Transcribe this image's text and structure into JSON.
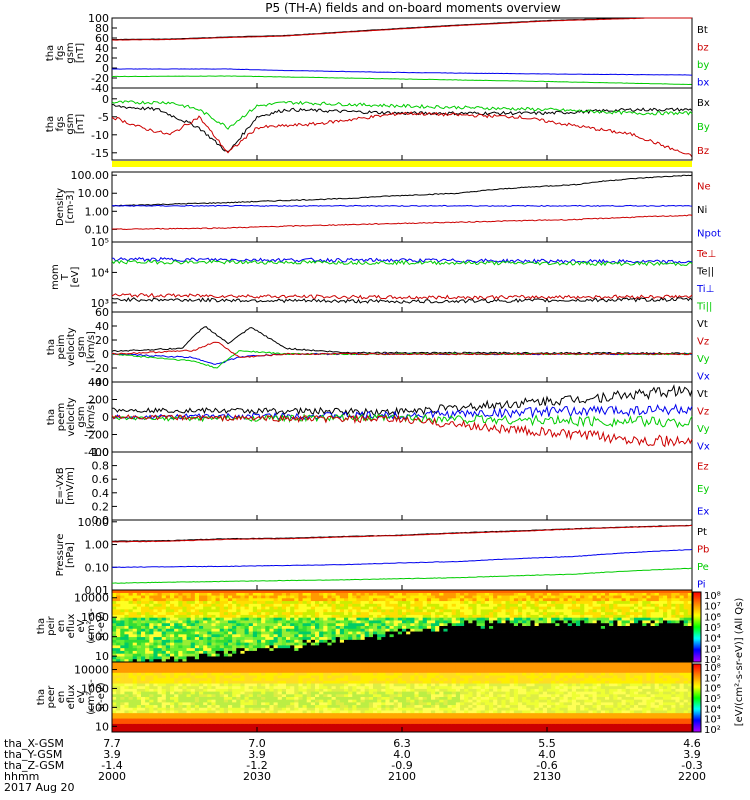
{
  "title": "P5 (TH-A) fields and on-board moments overview",
  "colors": {
    "black": "#000000",
    "red": "#cc0000",
    "green": "#00cc00",
    "blue": "#0000ee",
    "yellow": "#ffff00"
  },
  "panels": [
    {
      "ylabel": [
        "tha",
        "fgs",
        "gsm",
        "[nT]"
      ],
      "ticks": [
        "100",
        "80",
        "60",
        "40",
        "20",
        "0",
        "-20",
        "-40"
      ],
      "tickvals": [
        100,
        80,
        60,
        40,
        20,
        0,
        -20,
        -40
      ],
      "ylim": [
        -40,
        100
      ],
      "legend": [
        {
          "text": "Bt",
          "color": "black"
        },
        {
          "text": "bz",
          "color": "red"
        },
        {
          "text": "by",
          "color": "green"
        },
        {
          "text": "bx",
          "color": "blue"
        }
      ]
    },
    {
      "ylabel": [
        "tha",
        "fgs",
        "gsm",
        "[nT]"
      ],
      "ticks": [
        "0",
        "-5",
        "-10",
        "-15"
      ],
      "tickvals": [
        0,
        -5,
        -10,
        -15
      ],
      "ylim": [
        -17,
        3
      ],
      "legend": [
        {
          "text": "Bx",
          "color": "black"
        },
        {
          "text": "By",
          "color": "green"
        },
        {
          "text": "Bz",
          "color": "red"
        }
      ]
    },
    {
      "ylabel": [
        "Density",
        "[cm-3]"
      ],
      "ticks": [
        "100.00",
        "10.00",
        "1.00",
        "0.10"
      ],
      "tickvals": [
        100,
        10,
        1,
        0.1
      ],
      "ylim": [
        0.02,
        150
      ],
      "log": true,
      "legend": [
        {
          "text": "Ne",
          "color": "red"
        },
        {
          "text": "Ni",
          "color": "black"
        },
        {
          "text": "Npot",
          "color": "blue"
        }
      ]
    },
    {
      "ylabel": [
        "mom",
        "T",
        "[eV]"
      ],
      "ticks": [
        "10⁵",
        "10⁴",
        "10³"
      ],
      "tickvals": [
        100000,
        10000,
        1000
      ],
      "ylim": [
        500,
        100000
      ],
      "log": true,
      "legend": [
        {
          "text": "Te⊥",
          "color": "red"
        },
        {
          "text": "Te||",
          "color": "black"
        },
        {
          "text": "Ti⊥",
          "color": "blue"
        },
        {
          "text": "Ti||",
          "color": "green"
        }
      ]
    },
    {
      "ylabel": [
        "tha",
        "peim",
        "velocity",
        "gsm",
        "[km/s]"
      ],
      "ticks": [
        "60",
        "40",
        "20",
        "0",
        "-20",
        "-40"
      ],
      "tickvals": [
        60,
        40,
        20,
        0,
        -20,
        -40
      ],
      "ylim": [
        -40,
        60
      ],
      "legend": [
        {
          "text": "Vt",
          "color": "black"
        },
        {
          "text": "Vz",
          "color": "red"
        },
        {
          "text": "Vy",
          "color": "green"
        },
        {
          "text": "Vx",
          "color": "blue"
        }
      ]
    },
    {
      "ylabel": [
        "tha",
        "peem",
        "velocity",
        "gsm",
        "[km/s]"
      ],
      "ticks": [
        "400",
        "200",
        "0",
        "-200",
        "-400"
      ],
      "tickvals": [
        400,
        200,
        0,
        -200,
        -400
      ],
      "ylim": [
        -400,
        400
      ],
      "legend": [
        {
          "text": "Vt",
          "color": "black"
        },
        {
          "text": "Vz",
          "color": "red"
        },
        {
          "text": "Vy",
          "color": "green"
        },
        {
          "text": "Vx",
          "color": "blue"
        }
      ]
    },
    {
      "ylabel": [
        "E=-VxB",
        "[mV/m]"
      ],
      "ticks": [
        "1.0",
        "0.8",
        "0.6",
        "0.4",
        "0.2",
        "0.0"
      ],
      "tickvals": [
        1,
        0.8,
        0.6,
        0.4,
        0.2,
        0
      ],
      "ylim": [
        0,
        1
      ],
      "legend": [
        {
          "text": "Ez",
          "color": "red"
        },
        {
          "text": "Ey",
          "color": "green"
        },
        {
          "text": "Ex",
          "color": "blue"
        }
      ]
    },
    {
      "ylabel": [
        "Pressure",
        "[nPa]"
      ],
      "ticks": [
        "10.00",
        "1.00",
        "0.10",
        "0.01"
      ],
      "tickvals": [
        10,
        1,
        0.1,
        0.01
      ],
      "ylim": [
        0.01,
        12
      ],
      "log": true,
      "legend": [
        {
          "text": "Pt",
          "color": "black"
        },
        {
          "text": "Pb",
          "color": "red"
        },
        {
          "text": "Pe",
          "color": "green"
        },
        {
          "text": "Pi",
          "color": "blue"
        }
      ]
    },
    {
      "ylabel": [
        "tha",
        "peir",
        "en",
        "eflux",
        "eV",
        "(cm²-s-",
        "sr-eV)"
      ],
      "ticks": [
        "10000",
        "1000",
        "100",
        "10"
      ],
      "tickvals": [
        10000,
        1000,
        100,
        10
      ],
      "ylim": [
        5,
        25000
      ],
      "log": true,
      "spec": "ion"
    },
    {
      "ylabel": [
        "tha",
        "peer",
        "en",
        "eflux",
        "eV",
        "(cm²-s-",
        "sr-eV)"
      ],
      "ticks": [
        "10000",
        "1000",
        "100",
        "10"
      ],
      "tickvals": [
        10000,
        1000,
        100,
        10
      ],
      "ylim": [
        5,
        25000
      ],
      "log": true,
      "spec": "elec"
    }
  ],
  "colorbar": {
    "label": "[eV/(cm²-s-sr-eV)] (All Qs)",
    "upper_ticks": [
      "10⁸",
      "10⁷",
      "10⁶",
      "10⁵",
      "10⁴",
      "10³",
      "10²"
    ],
    "lower_ticks": [
      "10⁸",
      "10⁷",
      "10⁶",
      "10⁵",
      "10⁴",
      "10³",
      "10²"
    ]
  },
  "chart_data": {
    "type": "line",
    "title": "P5 (TH-A) fields and on-board moments overview",
    "x_ticks": [
      "2000",
      "2030",
      "2100",
      "2130",
      "2200"
    ],
    "x_rows": [
      {
        "label": "tha_X-GSM",
        "values": [
          "7.7",
          "7.0",
          "6.3",
          "5.5",
          "4.6"
        ]
      },
      {
        "label": "tha_Y-GSM",
        "values": [
          "3.9",
          "3.9",
          "4.0",
          "4.0",
          "3.9"
        ]
      },
      {
        "label": "tha_Z-GSM",
        "values": [
          "-1.4",
          "-1.2",
          "-0.9",
          "-0.6",
          "-0.3"
        ]
      },
      {
        "label": "hhmm",
        "values": [
          "2000",
          "2030",
          "2100",
          "2130",
          "2200"
        ]
      }
    ],
    "date_label": "2017 Aug 20",
    "series": [
      {
        "panel": 0,
        "name": "Bt",
        "x": [
          0,
          0.1,
          0.2,
          0.3,
          0.45,
          0.6,
          0.75,
          0.9,
          1
        ],
        "y": [
          57,
          58,
          62,
          65,
          76,
          86,
          95,
          100,
          104
        ]
      },
      {
        "panel": 0,
        "name": "bz",
        "x": [
          0,
          0.1,
          0.2,
          0.3,
          0.45,
          0.6,
          0.75,
          0.9,
          1
        ],
        "y": [
          56,
          57,
          61,
          64,
          75,
          85,
          94,
          99,
          103
        ]
      },
      {
        "panel": 0,
        "name": "bx",
        "x": [
          0,
          0.2,
          0.3,
          0.5,
          0.75,
          1
        ],
        "y": [
          -2,
          -2,
          -5,
          -9,
          -12,
          -14
        ]
      },
      {
        "panel": 0,
        "name": "by",
        "x": [
          0,
          0.2,
          0.3,
          0.5,
          0.75,
          1
        ],
        "y": [
          -17,
          -16,
          -18,
          -22,
          -27,
          -33
        ]
      },
      {
        "panel": 1,
        "name": "Bx",
        "x": [
          0,
          0.08,
          0.15,
          0.2,
          0.25,
          0.3,
          0.5,
          0.75,
          0.9,
          1
        ],
        "y": [
          -2,
          -3,
          -8,
          -15,
          -5,
          -3,
          -4,
          -4,
          -3,
          -3
        ]
      },
      {
        "panel": 1,
        "name": "By",
        "x": [
          0,
          0.1,
          0.15,
          0.2,
          0.25,
          0.3,
          0.5,
          0.75,
          0.9,
          1
        ],
        "y": [
          -1,
          -1,
          -3,
          -8,
          -2,
          -1,
          -2,
          -3,
          -4,
          -4
        ]
      },
      {
        "panel": 1,
        "name": "Bz",
        "x": [
          0,
          0.05,
          0.1,
          0.15,
          0.2,
          0.25,
          0.35,
          0.5,
          0.7,
          0.9,
          1
        ],
        "y": [
          -5,
          -8,
          -10,
          -5,
          -15,
          -8,
          -7,
          -4,
          -5,
          -10,
          -16
        ]
      },
      {
        "panel": 2,
        "name": "Ni",
        "x": [
          0,
          0.1,
          0.2,
          0.4,
          0.6,
          0.8,
          1
        ],
        "y": [
          2,
          2.5,
          3,
          5,
          10,
          30,
          100
        ]
      },
      {
        "panel": 2,
        "name": "Npot",
        "x": [
          0,
          0.5,
          1
        ],
        "y": [
          2,
          2,
          2
        ]
      },
      {
        "panel": 2,
        "name": "Ne",
        "x": [
          0,
          0.2,
          0.4,
          0.6,
          0.8,
          1
        ],
        "y": [
          0.1,
          0.12,
          0.18,
          0.25,
          0.35,
          0.6
        ]
      },
      {
        "panel": 3,
        "name": "Ti⊥",
        "x": [
          0,
          0.5,
          1
        ],
        "y": [
          27000,
          25000,
          22000
        ]
      },
      {
        "panel": 3,
        "name": "Ti||",
        "x": [
          0,
          0.5,
          1
        ],
        "y": [
          22000,
          21000,
          19000
        ]
      },
      {
        "panel": 3,
        "name": "Te⊥",
        "x": [
          0,
          0.5,
          1
        ],
        "y": [
          1800,
          1500,
          1600
        ]
      },
      {
        "panel": 3,
        "name": "Te||",
        "x": [
          0,
          0.5,
          1
        ],
        "y": [
          1300,
          1100,
          1300
        ]
      },
      {
        "panel": 4,
        "name": "Vt",
        "x": [
          0,
          0.12,
          0.16,
          0.2,
          0.24,
          0.3,
          0.4,
          1
        ],
        "y": [
          4,
          8,
          40,
          15,
          38,
          8,
          2,
          1
        ]
      },
      {
        "panel": 4,
        "name": "Vx",
        "x": [
          0,
          0.14,
          0.18,
          0.22,
          0.3,
          1
        ],
        "y": [
          0,
          -5,
          -15,
          -4,
          0,
          0
        ]
      },
      {
        "panel": 4,
        "name": "Vy",
        "x": [
          0,
          0.14,
          0.18,
          0.22,
          0.3,
          1
        ],
        "y": [
          0,
          -10,
          -20,
          5,
          0,
          0
        ]
      },
      {
        "panel": 4,
        "name": "Vz",
        "x": [
          0,
          0.14,
          0.18,
          0.22,
          0.3,
          1
        ],
        "y": [
          0,
          5,
          18,
          -5,
          0,
          0
        ]
      },
      {
        "panel": 5,
        "name": "Vt",
        "x": [
          0,
          0.5,
          0.75,
          1
        ],
        "y": [
          80,
          60,
          180,
          310
        ]
      },
      {
        "panel": 5,
        "name": "Vx",
        "x": [
          0,
          0.5,
          0.75,
          1
        ],
        "y": [
          0,
          20,
          60,
          90
        ]
      },
      {
        "panel": 5,
        "name": "Vy",
        "x": [
          0,
          0.5,
          0.75,
          1
        ],
        "y": [
          -20,
          -10,
          -40,
          -60
        ]
      },
      {
        "panel": 5,
        "name": "Vz",
        "x": [
          0,
          0.5,
          0.75,
          1
        ],
        "y": [
          0,
          -30,
          -180,
          -300
        ]
      },
      {
        "panel": 7,
        "name": "Pt",
        "x": [
          0,
          0.1,
          0.2,
          0.3,
          0.5,
          0.7,
          0.9,
          1
        ],
        "y": [
          1.4,
          1.5,
          1.8,
          1.9,
          2.6,
          4,
          6,
          7
        ]
      },
      {
        "panel": 7,
        "name": "Pb",
        "x": [
          0,
          0.1,
          0.2,
          0.3,
          0.5,
          0.7,
          0.9,
          1
        ],
        "y": [
          1.3,
          1.4,
          1.7,
          1.8,
          2.5,
          3.8,
          5.8,
          6.8
        ]
      },
      {
        "panel": 7,
        "name": "Pi",
        "x": [
          0,
          0.2,
          0.4,
          0.6,
          0.8,
          1
        ],
        "y": [
          0.1,
          0.11,
          0.13,
          0.18,
          0.3,
          0.6
        ]
      },
      {
        "panel": 7,
        "name": "Pe",
        "x": [
          0,
          0.2,
          0.4,
          0.6,
          0.8,
          1
        ],
        "y": [
          0.02,
          0.024,
          0.028,
          0.035,
          0.05,
          0.09
        ]
      }
    ]
  }
}
